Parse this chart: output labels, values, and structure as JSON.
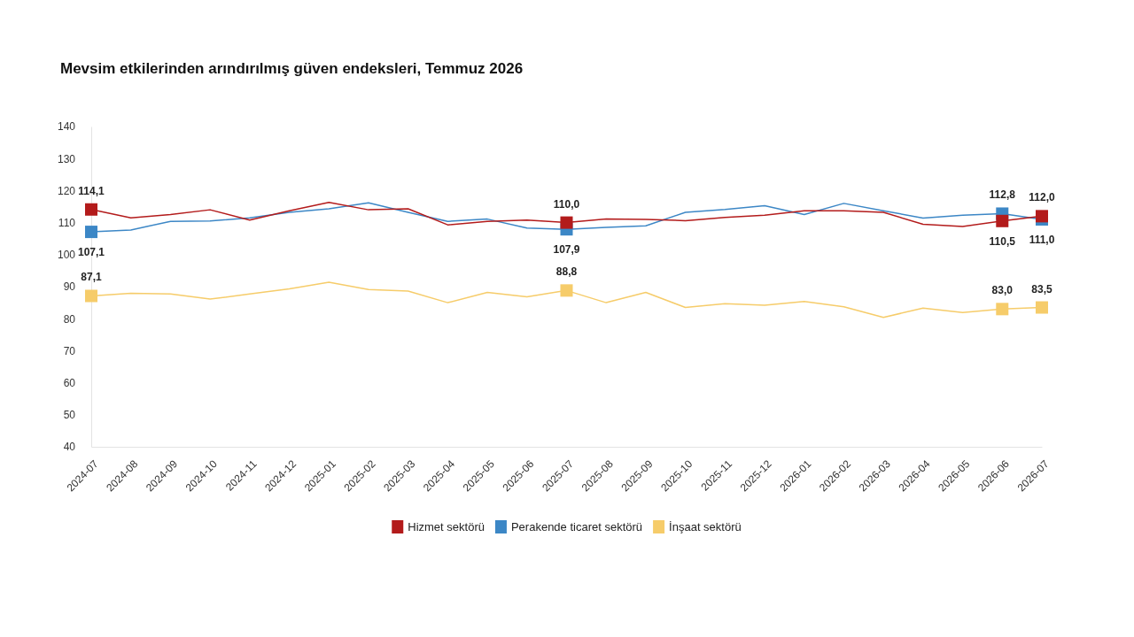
{
  "chart_data": {
    "type": "line",
    "title": "Mevsim etkilerinden arındırılmış güven endeksleri, Temmuz 2026",
    "categories": [
      "2024-07",
      "2024-08",
      "2024-09",
      "2024-10",
      "2024-11",
      "2024-12",
      "2025-01",
      "2025-02",
      "2025-03",
      "2025-04",
      "2025-05",
      "2025-06",
      "2025-07",
      "2025-08",
      "2025-09",
      "2025-10",
      "2025-11",
      "2025-12",
      "2026-01",
      "2026-02",
      "2026-03",
      "2026-04",
      "2026-05",
      "2026-06",
      "2026-07"
    ],
    "series": [
      {
        "name": "Hizmet sektörü",
        "color": "#b31b1b",
        "values": [
          114.1,
          111.5,
          112.5,
          114.0,
          110.8,
          113.7,
          116.3,
          114.0,
          114.3,
          109.3,
          110.4,
          110.8,
          110.0,
          111.1,
          111.0,
          110.6,
          111.6,
          112.3,
          113.7,
          113.7,
          113.2,
          109.5,
          108.8,
          110.5,
          112.0
        ],
        "value_labels": [
          "114,1",
          null,
          null,
          null,
          null,
          null,
          null,
          null,
          null,
          null,
          null,
          null,
          "110,0",
          null,
          null,
          null,
          null,
          null,
          null,
          null,
          null,
          null,
          null,
          "110,5",
          "112,0"
        ]
      },
      {
        "name": "Perakende ticaret sektörü",
        "color": "#3c87c6",
        "values": [
          107.1,
          107.7,
          110.4,
          110.5,
          111.5,
          113.2,
          114.3,
          116.2,
          113.2,
          110.4,
          111.1,
          108.3,
          107.9,
          108.5,
          109.0,
          113.2,
          114.1,
          115.3,
          112.5,
          116.0,
          113.7,
          111.4,
          112.3,
          112.8,
          111.0
        ],
        "value_labels": [
          "107,1",
          null,
          null,
          null,
          null,
          null,
          null,
          null,
          null,
          null,
          null,
          null,
          "107,9",
          null,
          null,
          null,
          null,
          null,
          null,
          null,
          null,
          null,
          null,
          "112,8",
          "111,0"
        ]
      },
      {
        "name": "İnşaat sektörü",
        "color": "#f6cc6a",
        "values": [
          87.1,
          87.9,
          87.7,
          86.1,
          87.7,
          89.3,
          91.4,
          89.1,
          88.6,
          85.0,
          88.2,
          86.8,
          88.8,
          85.0,
          88.2,
          83.5,
          84.7,
          84.2,
          85.4,
          83.7,
          80.4,
          83.3,
          81.9,
          83.0,
          83.5
        ],
        "value_labels": [
          "87,1",
          null,
          null,
          null,
          null,
          null,
          null,
          null,
          null,
          null,
          null,
          null,
          "88,8",
          null,
          null,
          null,
          null,
          null,
          null,
          null,
          null,
          null,
          null,
          "83,0",
          "83,5"
        ]
      }
    ],
    "ylim": [
      40,
      140
    ],
    "yticks": [
      40,
      50,
      60,
      70,
      80,
      90,
      100,
      110,
      120,
      130,
      140
    ],
    "legend": "bottom"
  }
}
